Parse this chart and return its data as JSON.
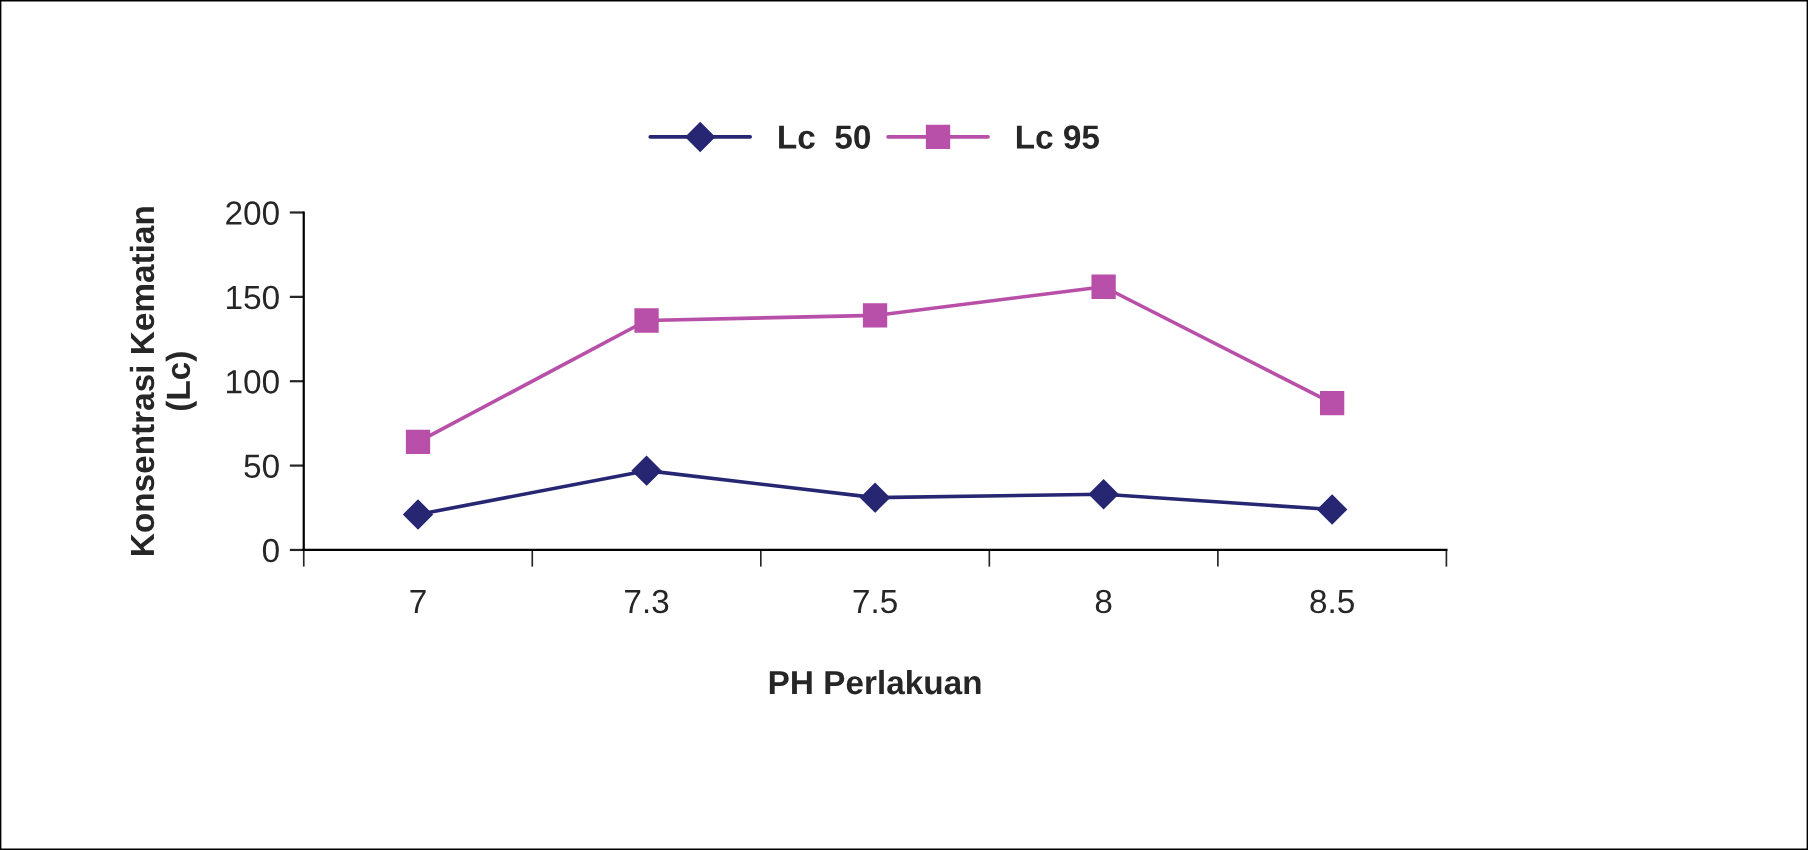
{
  "chart_data": {
    "type": "line",
    "xlabel": "PH Perlakuan",
    "ylabel": "Konsentrasi Kematian\n(Lc)",
    "categories": [
      "7",
      "7.3",
      "7.5",
      "8",
      "8.5"
    ],
    "series": [
      {
        "name": "Lc  50",
        "color": "#262673",
        "marker": "diamond",
        "values": [
          21,
          47,
          31,
          33,
          24
        ]
      },
      {
        "name": "Lc 95",
        "color": "#b84fa8",
        "marker": "square",
        "values": [
          64,
          136,
          139,
          156,
          87
        ]
      }
    ],
    "ylim": [
      0,
      200
    ],
    "yticks": [
      0,
      50,
      100,
      150,
      200
    ],
    "grid": false,
    "legend": "top"
  }
}
